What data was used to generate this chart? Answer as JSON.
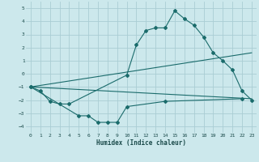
{
  "xlabel": "Humidex (Indice chaleur)",
  "bg_color": "#cce8ec",
  "grid_color": "#aacdd4",
  "line_color": "#1a6b6b",
  "xlim": [
    -0.5,
    23.5
  ],
  "ylim": [
    -4.5,
    5.5
  ],
  "yticks": [
    -4,
    -3,
    -2,
    -1,
    0,
    1,
    2,
    3,
    4,
    5
  ],
  "xticks": [
    0,
    1,
    2,
    3,
    4,
    5,
    6,
    7,
    8,
    9,
    10,
    11,
    12,
    13,
    14,
    15,
    16,
    17,
    18,
    19,
    20,
    21,
    22,
    23
  ],
  "line1_x": [
    0,
    1,
    2,
    3,
    4,
    10,
    11,
    12,
    13,
    14,
    15,
    16,
    17,
    18,
    19,
    20,
    21,
    22,
    23
  ],
  "line1_y": [
    -1.0,
    -1.3,
    -2.1,
    -2.3,
    -2.3,
    -0.1,
    2.2,
    3.3,
    3.5,
    3.5,
    4.8,
    4.2,
    3.7,
    2.8,
    1.6,
    1.0,
    0.3,
    -1.3,
    -2.0
  ],
  "line2_x": [
    0,
    5,
    6,
    7,
    8,
    9,
    10,
    14,
    22
  ],
  "line2_y": [
    -1.0,
    -3.2,
    -3.2,
    -3.7,
    -3.7,
    -3.7,
    -2.5,
    -2.1,
    -1.9
  ],
  "line3_x": [
    0,
    23
  ],
  "line3_y": [
    -1.0,
    1.6
  ],
  "line4_x": [
    0,
    23
  ],
  "line4_y": [
    -1.0,
    -1.9
  ]
}
